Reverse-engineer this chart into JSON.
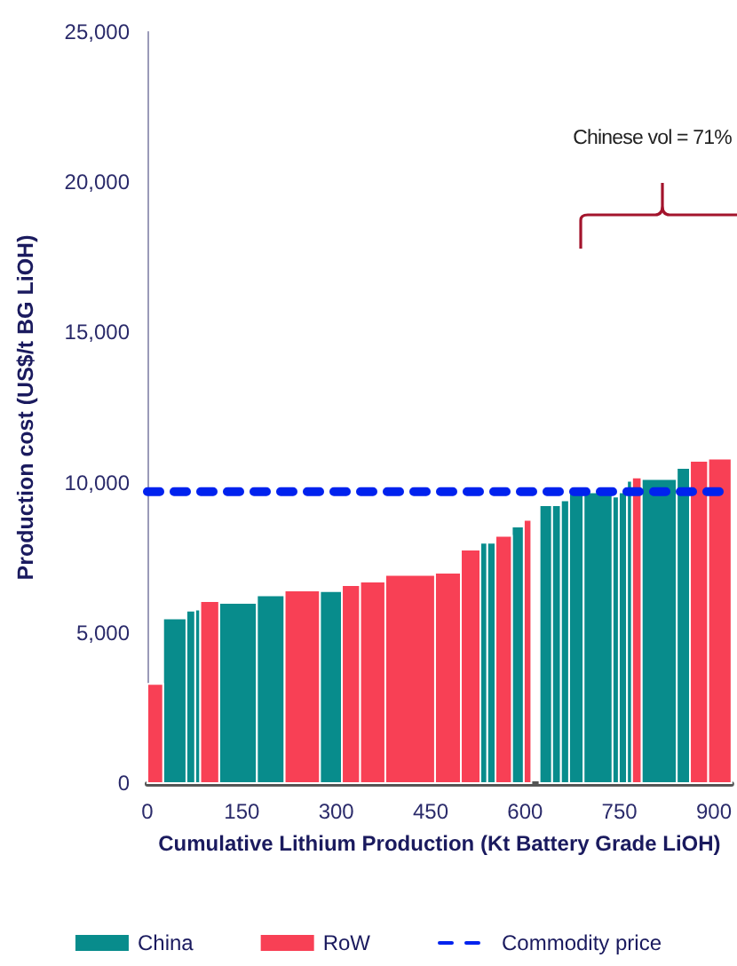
{
  "chart_data": {
    "type": "histogram",
    "xlabel": "Cumulative Lithium Production (Kt Battery Grade LiOH)",
    "ylabel": "Production cost (US$/t BG LiOH)",
    "bins": [
      0,
      25,
      62,
      76,
      84,
      114,
      174,
      218,
      274,
      309,
      338,
      378,
      457,
      498,
      529,
      540,
      553,
      579,
      598,
      610,
      623,
      643,
      657,
      670,
      693,
      739,
      749,
      762,
      770,
      785,
      841,
      862,
      891,
      928
    ],
    "series": [
      {
        "name": "China",
        "color": "#088c8c",
        "values": [
          null,
          5480,
          5740,
          5780,
          null,
          6000,
          6250,
          null,
          6390,
          null,
          null,
          null,
          null,
          null,
          8000,
          8000,
          null,
          8540,
          null,
          null,
          9250,
          9250,
          9410,
          9640,
          9680,
          9540,
          9680,
          10060,
          null,
          10120,
          10490,
          null,
          null
        ]
      },
      {
        "name": "RoW",
        "color": "#f84055",
        "values": [
          3300,
          null,
          null,
          null,
          6060,
          null,
          null,
          6410,
          null,
          6590,
          6710,
          6930,
          7000,
          7770,
          null,
          null,
          8230,
          null,
          8760,
          null,
          null,
          null,
          null,
          null,
          null,
          null,
          null,
          null,
          10170,
          null,
          null,
          10730,
          10800
        ]
      },
      {
        "name": "Commodity price",
        "type": "line",
        "color": "#0022ee",
        "line_style": "dashed",
        "marker": "none",
        "x": [
          0,
          928
        ],
        "values": [
          9700,
          9700
        ]
      }
    ],
    "xlim": [
      0,
      928
    ],
    "xticks": [
      0,
      150,
      300,
      450,
      600,
      750,
      900
    ],
    "ylim": [
      0,
      25000
    ],
    "yticks": [
      0,
      {
        "value": 5000,
        "label": "5,000"
      },
      {
        "value": 10000,
        "label": "10,000"
      },
      {
        "value": 15000,
        "label": "15,000"
      },
      {
        "value": 20000,
        "label": "20,000"
      },
      {
        "value": 25000,
        "label": "25,000"
      }
    ],
    "grid": false,
    "legend": "bottom",
    "annotations": [
      "Chinese vol = 71%"
    ]
  }
}
